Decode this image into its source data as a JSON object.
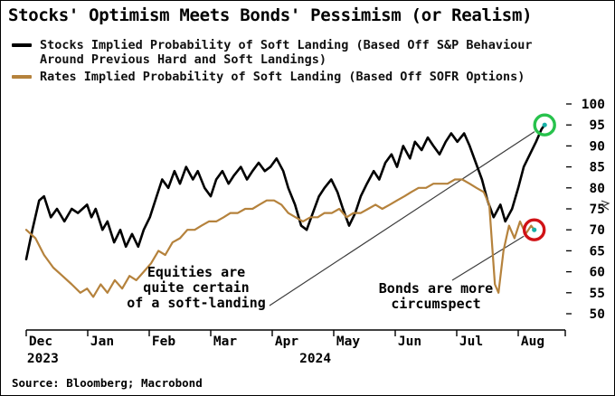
{
  "title": "Stocks' Optimism Meets Bonds' Pessimism (or Realism)",
  "legend": [
    {
      "label": "Stocks Implied Probability of Soft Landing (Based Off S&P Behaviour Around Previous Hard and Soft Landings)",
      "color": "#000000"
    },
    {
      "label": "Rates Implied Probability of Soft Landing (Based Off SOFR Options)",
      "color": "#b5823c"
    }
  ],
  "source": "Source: Bloomberg; Macrobond",
  "chart_data": {
    "type": "line",
    "title": "Stocks' Optimism Meets Bonds' Pessimism (or Realism)",
    "x_unit": "months since Dec 2023",
    "xlim": [
      0,
      8.75
    ],
    "ylim": [
      48,
      101.5
    ],
    "grid": false,
    "legend_position": "top-left",
    "x_tick_labels": [
      "Dec",
      "Jan",
      "Feb",
      "Mar",
      "Apr",
      "May",
      "Jun",
      "Jul",
      "Aug"
    ],
    "year_labels": [
      {
        "label": "2023",
        "x_month": 0.27
      },
      {
        "label": "2024",
        "x_month": 4.7
      }
    ],
    "y_ticks": [
      100,
      95,
      90,
      85,
      80,
      75,
      70,
      65,
      60,
      55,
      50
    ],
    "series": [
      {
        "name": "Stocks Implied Probability of Soft Landing",
        "key": "stocks",
        "color": "#000000",
        "width": 2.6,
        "points": [
          [
            0,
            63
          ],
          [
            0.1,
            70
          ],
          [
            0.21,
            77
          ],
          [
            0.29,
            78
          ],
          [
            0.4,
            73
          ],
          [
            0.5,
            75
          ],
          [
            0.62,
            72
          ],
          [
            0.74,
            75
          ],
          [
            0.84,
            74
          ],
          [
            0.99,
            76
          ],
          [
            1.06,
            73
          ],
          [
            1.13,
            75
          ],
          [
            1.24,
            70
          ],
          [
            1.32,
            72
          ],
          [
            1.43,
            67
          ],
          [
            1.53,
            70
          ],
          [
            1.62,
            66
          ],
          [
            1.72,
            69
          ],
          [
            1.82,
            66
          ],
          [
            1.91,
            70
          ],
          [
            2.01,
            73
          ],
          [
            2.12,
            78
          ],
          [
            2.21,
            82
          ],
          [
            2.31,
            80
          ],
          [
            2.41,
            84
          ],
          [
            2.5,
            81
          ],
          [
            2.6,
            85
          ],
          [
            2.71,
            82
          ],
          [
            2.79,
            84
          ],
          [
            2.9,
            80
          ],
          [
            3,
            78
          ],
          [
            3.09,
            82
          ],
          [
            3.19,
            84
          ],
          [
            3.29,
            81
          ],
          [
            3.38,
            83
          ],
          [
            3.49,
            85
          ],
          [
            3.59,
            82
          ],
          [
            3.68,
            84
          ],
          [
            3.78,
            86
          ],
          [
            3.88,
            84
          ],
          [
            3.97,
            85
          ],
          [
            4.07,
            87
          ],
          [
            4.18,
            84
          ],
          [
            4.26,
            80
          ],
          [
            4.37,
            76
          ],
          [
            4.47,
            71
          ],
          [
            4.56,
            70
          ],
          [
            4.66,
            74
          ],
          [
            4.76,
            78
          ],
          [
            4.85,
            80
          ],
          [
            4.96,
            82
          ],
          [
            5.06,
            79
          ],
          [
            5.15,
            75
          ],
          [
            5.25,
            71
          ],
          [
            5.35,
            74
          ],
          [
            5.44,
            78
          ],
          [
            5.54,
            81
          ],
          [
            5.65,
            84
          ],
          [
            5.74,
            82
          ],
          [
            5.84,
            86
          ],
          [
            5.94,
            88
          ],
          [
            6.03,
            85
          ],
          [
            6.13,
            90
          ],
          [
            6.24,
            87
          ],
          [
            6.32,
            91
          ],
          [
            6.43,
            89
          ],
          [
            6.53,
            92
          ],
          [
            6.62,
            90
          ],
          [
            6.72,
            88
          ],
          [
            6.82,
            91
          ],
          [
            6.91,
            93
          ],
          [
            7.01,
            91
          ],
          [
            7.12,
            93
          ],
          [
            7.21,
            90
          ],
          [
            7.31,
            86
          ],
          [
            7.41,
            82
          ],
          [
            7.5,
            77
          ],
          [
            7.6,
            73
          ],
          [
            7.71,
            76
          ],
          [
            7.79,
            72
          ],
          [
            7.9,
            75
          ],
          [
            8,
            80
          ],
          [
            8.09,
            85
          ],
          [
            8.19,
            88
          ],
          [
            8.29,
            91
          ],
          [
            8.38,
            94
          ],
          [
            8.43,
            95
          ]
        ]
      },
      {
        "name": "Rates Implied Probability of Soft Landing",
        "key": "rates",
        "color": "#b5823c",
        "width": 2.2,
        "points": [
          [
            0,
            70
          ],
          [
            0.15,
            68
          ],
          [
            0.29,
            64
          ],
          [
            0.44,
            61
          ],
          [
            0.59,
            59
          ],
          [
            0.74,
            57
          ],
          [
            0.88,
            55
          ],
          [
            0.99,
            56
          ],
          [
            1.09,
            54
          ],
          [
            1.21,
            57
          ],
          [
            1.32,
            55
          ],
          [
            1.44,
            58
          ],
          [
            1.56,
            56
          ],
          [
            1.68,
            59
          ],
          [
            1.79,
            58
          ],
          [
            1.91,
            60
          ],
          [
            2.03,
            62
          ],
          [
            2.15,
            65
          ],
          [
            2.26,
            64
          ],
          [
            2.38,
            67
          ],
          [
            2.5,
            68
          ],
          [
            2.62,
            70
          ],
          [
            2.74,
            70
          ],
          [
            2.85,
            71
          ],
          [
            2.97,
            72
          ],
          [
            3.09,
            72
          ],
          [
            3.21,
            73
          ],
          [
            3.32,
            74
          ],
          [
            3.44,
            74
          ],
          [
            3.56,
            75
          ],
          [
            3.68,
            75
          ],
          [
            3.79,
            76
          ],
          [
            3.91,
            77
          ],
          [
            4.03,
            77
          ],
          [
            4.15,
            76
          ],
          [
            4.26,
            74
          ],
          [
            4.38,
            73
          ],
          [
            4.5,
            72
          ],
          [
            4.62,
            73
          ],
          [
            4.74,
            73
          ],
          [
            4.85,
            74
          ],
          [
            4.97,
            74
          ],
          [
            5.09,
            75
          ],
          [
            5.21,
            73
          ],
          [
            5.32,
            74
          ],
          [
            5.44,
            74
          ],
          [
            5.56,
            75
          ],
          [
            5.68,
            76
          ],
          [
            5.79,
            75
          ],
          [
            5.91,
            76
          ],
          [
            6.03,
            77
          ],
          [
            6.15,
            78
          ],
          [
            6.26,
            79
          ],
          [
            6.38,
            80
          ],
          [
            6.5,
            80
          ],
          [
            6.62,
            81
          ],
          [
            6.74,
            81
          ],
          [
            6.85,
            81
          ],
          [
            6.97,
            82
          ],
          [
            7.09,
            82
          ],
          [
            7.21,
            81
          ],
          [
            7.32,
            80
          ],
          [
            7.44,
            79
          ],
          [
            7.53,
            76
          ],
          [
            7.62,
            57
          ],
          [
            7.68,
            55
          ],
          [
            7.76,
            65
          ],
          [
            7.85,
            71
          ],
          [
            7.94,
            68
          ],
          [
            8.03,
            72
          ],
          [
            8.12,
            69
          ],
          [
            8.21,
            71
          ],
          [
            8.26,
            70
          ]
        ]
      }
    ],
    "annotations": [
      {
        "id": "equities",
        "lines": [
          "Equities are",
          "quite certain",
          "of a soft-landing"
        ],
        "target_series": "stocks",
        "ring_color": "#27c24c"
      },
      {
        "id": "bonds",
        "lines": [
          "Bonds are more",
          "circumspect"
        ],
        "target_series": "rates",
        "ring_color": "#d01216"
      }
    ],
    "endpoint_marker_color": "#17b0a6"
  }
}
